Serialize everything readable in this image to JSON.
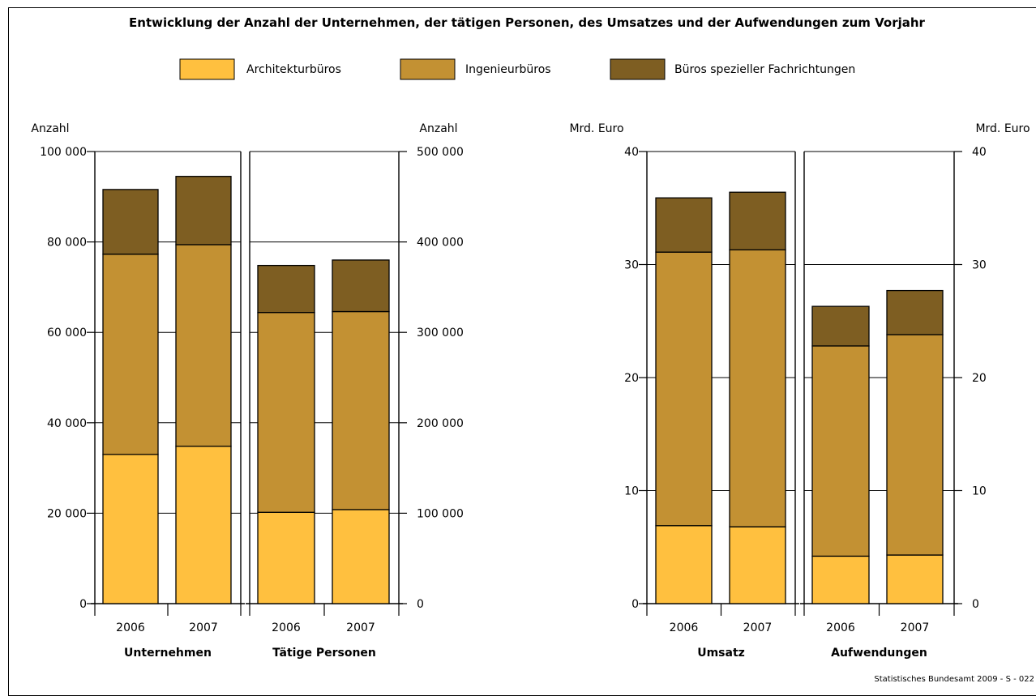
{
  "title": "Entwicklung der Anzahl der Unternehmen, der tätigen Personen, des Umsatzes und der Aufwendungen zum Vorjahr",
  "source": "Statistisches Bundesamt 2009 - S - 022",
  "legend": [
    {
      "label": "Architekturbüros",
      "color": "#FFC03F"
    },
    {
      "label": "Ingenieurbüros",
      "color": "#C39133"
    },
    {
      "label": "Büros spezieller Fachrichtungen",
      "color": "#7E5E22"
    }
  ],
  "chart_data": [
    {
      "type": "bar",
      "stacked": true,
      "group_label": "Unternehmen",
      "axis": "left",
      "unit_label": "Anzahl",
      "ylim": [
        0,
        100000
      ],
      "yticks": [
        "0",
        "20 000",
        "40 000",
        "60 000",
        "80 000",
        "100 000"
      ],
      "categories": [
        "2006",
        "2007"
      ],
      "series": [
        {
          "name": "Architekturbüros",
          "values": [
            33000,
            34800
          ]
        },
        {
          "name": "Ingenieurbüros",
          "values": [
            44300,
            44600
          ]
        },
        {
          "name": "Büros spezieller Fachrichtungen",
          "values": [
            14300,
            15100
          ]
        }
      ]
    },
    {
      "type": "bar",
      "stacked": true,
      "group_label": "Tätige Personen",
      "axis": "right",
      "unit_label": "Anzahl",
      "ylim": [
        0,
        500000
      ],
      "yticks": [
        "0",
        "100 000",
        "200 000",
        "300 000",
        "400 000",
        "500 000"
      ],
      "categories": [
        "2006",
        "2007"
      ],
      "series": [
        {
          "name": "Architekturbüros",
          "values": [
            101000,
            104000
          ]
        },
        {
          "name": "Ingenieurbüros",
          "values": [
            221000,
            219000
          ]
        },
        {
          "name": "Büros spezieller Fachrichtungen",
          "values": [
            52000,
            57000
          ]
        }
      ]
    },
    {
      "type": "bar",
      "stacked": true,
      "group_label": "Umsatz",
      "axis": "left",
      "unit_label": "Mrd. Euro",
      "ylim": [
        0,
        40
      ],
      "yticks": [
        "0",
        "10",
        "20",
        "30",
        "40"
      ],
      "categories": [
        "2006",
        "2007"
      ],
      "series": [
        {
          "name": "Architekturbüros",
          "values": [
            6.9,
            6.8
          ]
        },
        {
          "name": "Ingenieurbüros",
          "values": [
            24.2,
            24.5
          ]
        },
        {
          "name": "Büros spezieller Fachrichtungen",
          "values": [
            4.8,
            5.1
          ]
        }
      ]
    },
    {
      "type": "bar",
      "stacked": true,
      "group_label": "Aufwendungen",
      "axis": "right",
      "unit_label": "Mrd. Euro",
      "ylim": [
        0,
        40
      ],
      "yticks": [
        "0",
        "10",
        "20",
        "30",
        "40"
      ],
      "categories": [
        "2006",
        "2007"
      ],
      "series": [
        {
          "name": "Architekturbüros",
          "values": [
            4.2,
            4.3
          ]
        },
        {
          "name": "Ingenieurbüros",
          "values": [
            18.6,
            19.5
          ]
        },
        {
          "name": "Büros spezieller Fachrichtungen",
          "values": [
            3.5,
            3.9
          ]
        }
      ]
    }
  ]
}
